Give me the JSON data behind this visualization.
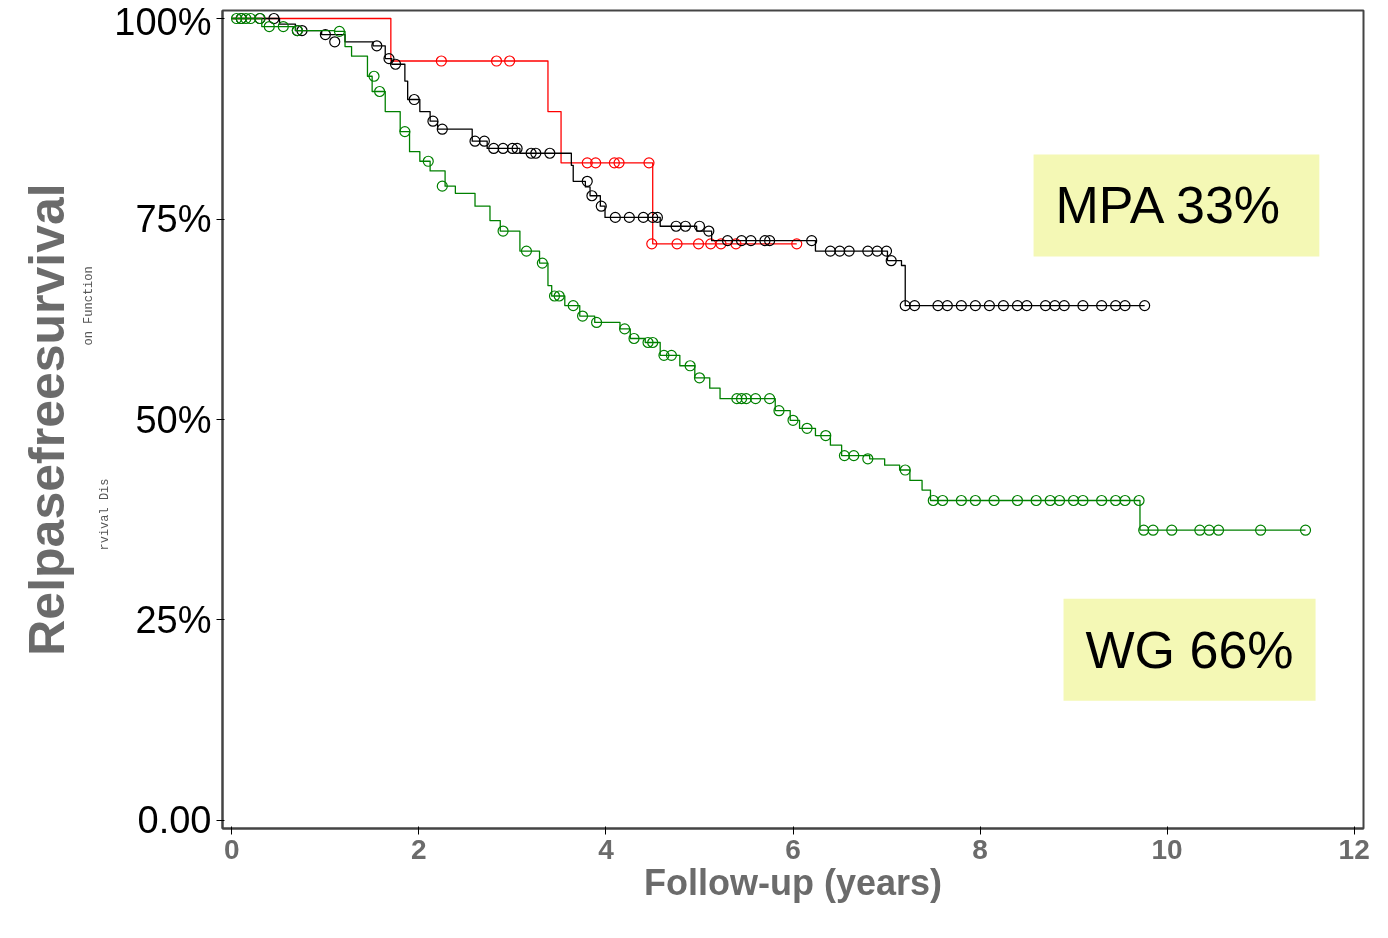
{
  "chart_data": {
    "type": "step",
    "xlabel": "Follow-up (years)",
    "ylabel": "Relpasefreesurvival",
    "annotations": [
      "MPA  33%",
      "WG 66%",
      "rvival Dis",
      "on Function"
    ],
    "xlim": [
      -0.1,
      12.1
    ],
    "ylim": [
      -0.01,
      1.01
    ],
    "xticks": [
      0,
      2,
      4,
      6,
      8,
      10,
      12
    ],
    "yticks": [
      {
        "value": 0,
        "label": "0.00"
      },
      {
        "value": 0.25,
        "label": "25%"
      },
      {
        "value": 0.5,
        "label": "50%"
      },
      {
        "value": 0.75,
        "label": "75%"
      },
      {
        "value": 1.0,
        "label": "100%"
      }
    ],
    "grid": false,
    "series": [
      {
        "color": "#ff0000",
        "x": [
          0,
          1.7,
          3.38,
          3.52,
          4.5,
          6.04
        ],
        "values": [
          1.0,
          0.947,
          0.884,
          0.82,
          0.719,
          0.719
        ]
      },
      {
        "type": "scatter",
        "marker": "circle",
        "color": "#ff0000",
        "x": [
          2.24,
          2.83,
          2.97,
          3.8,
          3.89,
          4.09,
          4.14,
          4.46,
          4.49,
          4.76,
          4.99,
          5.12,
          5.23,
          5.39,
          6.04
        ],
        "values": [
          0.947,
          0.947,
          0.947,
          0.82,
          0.82,
          0.82,
          0.82,
          0.82,
          0.719,
          0.719,
          0.719,
          0.719,
          0.719,
          0.719,
          0.719
        ]
      },
      {
        "color": "#000000",
        "x": [
          0,
          0.51,
          0.68,
          0.96,
          1.21,
          1.51,
          1.64,
          1.71,
          1.85,
          1.88,
          2.01,
          2.12,
          2.2,
          2.57,
          2.73,
          3.08,
          3.63,
          3.65,
          3.78,
          3.83,
          3.94,
          3.99,
          4.58,
          4.97,
          5.13,
          6.24,
          7.01,
          7.16,
          7.2,
          9.76
        ],
        "values": [
          1.0,
          0.993,
          0.985,
          0.98,
          0.971,
          0.966,
          0.95,
          0.943,
          0.922,
          0.899,
          0.884,
          0.872,
          0.862,
          0.847,
          0.838,
          0.832,
          0.817,
          0.797,
          0.79,
          0.779,
          0.766,
          0.752,
          0.741,
          0.735,
          0.723,
          0.71,
          0.698,
          0.692,
          0.642,
          0.642
        ]
      },
      {
        "type": "scatter",
        "marker": "circle",
        "color": "#000000",
        "x": [
          0.1,
          0.3,
          0.45,
          0.7,
          0.75,
          1.0,
          1.1,
          1.55,
          1.68,
          1.75,
          1.95,
          2.15,
          2.25,
          2.6,
          2.7,
          2.8,
          2.9,
          3.0,
          3.05,
          3.2,
          3.25,
          3.4,
          3.8,
          3.85,
          3.95,
          4.1,
          4.25,
          4.4,
          4.5,
          4.55,
          4.75,
          4.85,
          5.0,
          5.1,
          5.3,
          5.45,
          5.55,
          5.7,
          5.75,
          6.2,
          6.4,
          6.5,
          6.6,
          6.8,
          6.9,
          7.0,
          7.05,
          7.2,
          7.3,
          7.55,
          7.65,
          7.8,
          7.95,
          8.1,
          8.25,
          8.4,
          8.5,
          8.7,
          8.8,
          8.9,
          9.1,
          9.3,
          9.45,
          9.55,
          9.76
        ],
        "values": [
          1.0,
          1.0,
          1.0,
          0.985,
          0.985,
          0.98,
          0.971,
          0.966,
          0.95,
          0.943,
          0.899,
          0.872,
          0.862,
          0.847,
          0.847,
          0.838,
          0.838,
          0.838,
          0.838,
          0.832,
          0.832,
          0.832,
          0.797,
          0.779,
          0.766,
          0.752,
          0.752,
          0.752,
          0.752,
          0.752,
          0.741,
          0.741,
          0.741,
          0.735,
          0.723,
          0.723,
          0.723,
          0.723,
          0.723,
          0.723,
          0.71,
          0.71,
          0.71,
          0.71,
          0.71,
          0.71,
          0.698,
          0.642,
          0.642,
          0.642,
          0.642,
          0.642,
          0.642,
          0.642,
          0.642,
          0.642,
          0.642,
          0.642,
          0.642,
          0.642,
          0.642,
          0.642,
          0.642,
          0.642,
          0.642
        ]
      },
      {
        "color": "#008000",
        "x": [
          0,
          0.32,
          0.68,
          1.1,
          1.21,
          1.28,
          1.45,
          1.5,
          1.64,
          1.8,
          1.9,
          2.01,
          2.12,
          2.28,
          2.39,
          2.6,
          2.76,
          2.87,
          3.08,
          3.29,
          3.38,
          3.42,
          3.56,
          3.72,
          3.88,
          4.15,
          4.26,
          4.42,
          4.58,
          4.79,
          4.95,
          5.11,
          5.22,
          5.81,
          5.97,
          6.07,
          6.24,
          6.4,
          6.52,
          6.82,
          6.98,
          7.14,
          7.25,
          7.38,
          7.47,
          9.71,
          11.48
        ],
        "values": [
          1.0,
          0.99,
          0.985,
          0.984,
          0.965,
          0.953,
          0.928,
          0.909,
          0.884,
          0.859,
          0.834,
          0.822,
          0.81,
          0.791,
          0.782,
          0.766,
          0.748,
          0.735,
          0.71,
          0.695,
          0.667,
          0.654,
          0.642,
          0.629,
          0.621,
          0.613,
          0.601,
          0.596,
          0.58,
          0.567,
          0.552,
          0.539,
          0.526,
          0.511,
          0.499,
          0.489,
          0.48,
          0.468,
          0.455,
          0.451,
          0.443,
          0.437,
          0.424,
          0.412,
          0.399,
          0.362,
          0.362
        ]
      },
      {
        "type": "scatter",
        "marker": "circle",
        "color": "#008000",
        "x": [
          0.05,
          0.1,
          0.15,
          0.2,
          0.3,
          0.4,
          0.55,
          0.7,
          1.15,
          1.52,
          1.58,
          1.85,
          2.1,
          2.25,
          2.9,
          3.15,
          3.32,
          3.45,
          3.5,
          3.65,
          3.75,
          3.9,
          4.2,
          4.3,
          4.45,
          4.5,
          4.62,
          4.7,
          4.9,
          5.0,
          5.4,
          5.45,
          5.5,
          5.6,
          5.75,
          5.85,
          6.0,
          6.15,
          6.35,
          6.55,
          6.65,
          6.8,
          7.2,
          7.5,
          7.6,
          7.8,
          7.95,
          8.15,
          8.4,
          8.6,
          8.75,
          8.85,
          9.0,
          9.1,
          9.3,
          9.45,
          9.55,
          9.7,
          9.75,
          9.85,
          10.05,
          10.35,
          10.45,
          10.55,
          11.0,
          11.48
        ],
        "values": [
          1.0,
          1.0,
          1.0,
          1.0,
          1.0,
          0.99,
          0.99,
          0.985,
          0.984,
          0.928,
          0.909,
          0.859,
          0.822,
          0.791,
          0.735,
          0.71,
          0.695,
          0.654,
          0.654,
          0.642,
          0.629,
          0.621,
          0.613,
          0.601,
          0.596,
          0.596,
          0.58,
          0.58,
          0.567,
          0.552,
          0.526,
          0.526,
          0.526,
          0.526,
          0.526,
          0.511,
          0.499,
          0.489,
          0.48,
          0.455,
          0.455,
          0.451,
          0.437,
          0.399,
          0.399,
          0.399,
          0.399,
          0.399,
          0.399,
          0.399,
          0.399,
          0.399,
          0.399,
          0.399,
          0.399,
          0.399,
          0.399,
          0.399,
          0.362,
          0.362,
          0.362,
          0.362,
          0.362,
          0.362,
          0.362,
          0.362
        ]
      }
    ]
  }
}
